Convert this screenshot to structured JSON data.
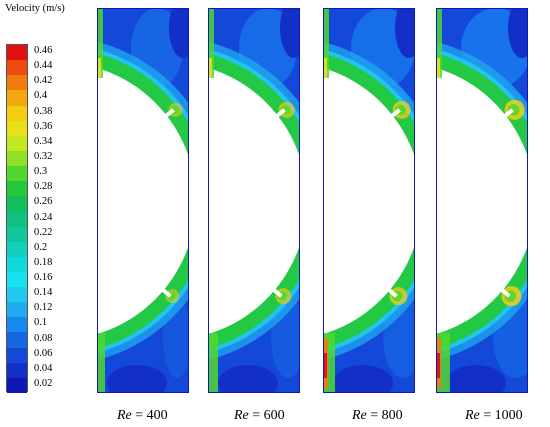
{
  "legend": {
    "title": "Velocity (m/s)",
    "labels": [
      "0.46",
      "0.44",
      "0.42",
      "0.4",
      "0.38",
      "0.36",
      "0.34",
      "0.32",
      "0.3",
      "0.28",
      "0.26",
      "0.24",
      "0.22",
      "0.2",
      "0.18",
      "0.16",
      "0.14",
      "0.12",
      "0.1",
      "0.08",
      "0.06",
      "0.04",
      "0.02"
    ],
    "colors": [
      "#e01010",
      "#ee4a10",
      "#f07c10",
      "#f2a810",
      "#f4cc12",
      "#eae018",
      "#c2e820",
      "#90e028",
      "#50d830",
      "#24c83a",
      "#12be5a",
      "#10c07e",
      "#10c8a0",
      "#10d0c0",
      "#10d8dc",
      "#18e2ee",
      "#22caf0",
      "#20aaf0",
      "#1888ee",
      "#1666e4",
      "#1448d8",
      "#1230c8",
      "#1018b4"
    ]
  },
  "panels": [
    {
      "re_symbol": "Re",
      "eq": " = ",
      "value": "400"
    },
    {
      "re_symbol": "Re",
      "eq": " = ",
      "value": "600"
    },
    {
      "re_symbol": "Re",
      "eq": " = ",
      "value": "800"
    },
    {
      "re_symbol": "Re",
      "eq": " = ",
      "value": "1000"
    }
  ]
}
